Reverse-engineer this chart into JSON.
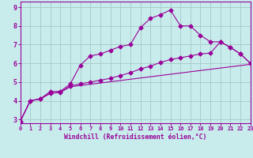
{
  "xlabel": "Windchill (Refroidissement éolien,°C)",
  "background_color": "#c8ecec",
  "line_color": "#990099",
  "grid_color": "#aacccc",
  "xlim": [
    0,
    23
  ],
  "ylim": [
    2.8,
    9.3
  ],
  "xticks": [
    0,
    1,
    2,
    3,
    4,
    5,
    6,
    7,
    8,
    9,
    10,
    11,
    12,
    13,
    14,
    15,
    16,
    17,
    18,
    19,
    20,
    21,
    22,
    23
  ],
  "yticks": [
    3,
    4,
    5,
    6,
    7,
    8,
    9
  ],
  "line1_x": [
    0,
    1,
    2,
    3,
    4,
    5,
    6,
    7,
    8,
    9,
    10,
    11,
    12,
    13,
    14,
    15,
    16,
    17,
    18,
    19,
    20,
    21,
    22,
    23
  ],
  "line1_y": [
    2.9,
    4.0,
    4.1,
    4.5,
    4.5,
    4.9,
    5.9,
    6.4,
    6.5,
    6.7,
    6.9,
    7.0,
    7.9,
    8.4,
    8.6,
    8.85,
    8.0,
    8.0,
    7.5,
    7.15,
    7.15,
    6.85,
    6.5,
    6.0
  ],
  "line2_x": [
    0,
    1,
    2,
    3,
    4,
    5,
    23
  ],
  "line2_y": [
    2.9,
    4.0,
    4.1,
    4.4,
    4.45,
    4.75,
    5.95
  ],
  "line3_x": [
    0,
    1,
    2,
    3,
    4,
    5,
    6,
    7,
    8,
    9,
    10,
    11,
    12,
    13,
    14,
    15,
    16,
    17,
    18,
    19,
    20,
    21,
    22,
    23
  ],
  "line3_y": [
    2.9,
    4.0,
    4.1,
    4.4,
    4.45,
    4.8,
    4.9,
    5.0,
    5.1,
    5.2,
    5.35,
    5.5,
    5.7,
    5.85,
    6.05,
    6.2,
    6.3,
    6.4,
    6.5,
    6.55,
    7.15,
    6.85,
    6.5,
    6.0
  ]
}
